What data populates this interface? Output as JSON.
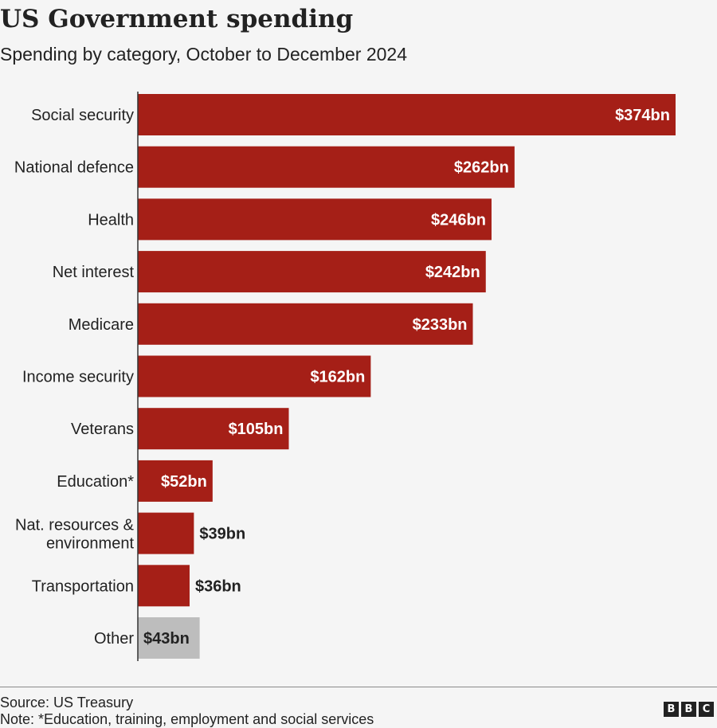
{
  "title": "US Government spending",
  "subtitle": "Spending by category, October to December 2024",
  "source": "Source: US Treasury",
  "note": "Note: *Education, training, employment and social services",
  "logo": [
    "B",
    "B",
    "C"
  ],
  "colors": {
    "bar": "#a51f17",
    "other_bar": "#bdbdbd",
    "axis": "#333333",
    "label_inside": "#ffffff",
    "label_outside": "#222222"
  },
  "chart_data": {
    "type": "bar",
    "orientation": "horizontal",
    "categories": [
      "Social security",
      "National defence",
      "Health",
      "Net interest",
      "Medicare",
      "Income security",
      "Veterans",
      "Education*",
      "Nat. resources & environment",
      "Transportation",
      "Other"
    ],
    "values": [
      374,
      262,
      246,
      242,
      233,
      162,
      105,
      52,
      39,
      36,
      43
    ],
    "data_labels": [
      "$374bn",
      "$262bn",
      "$246bn",
      "$242bn",
      "$233bn",
      "$162bn",
      "$105bn",
      "$52bn",
      "$39bn",
      "$36bn",
      "$43bn"
    ],
    "unit": "$bn",
    "xlim": [
      0,
      374
    ],
    "grid": false,
    "highlight": {
      "Other": "grey"
    }
  }
}
